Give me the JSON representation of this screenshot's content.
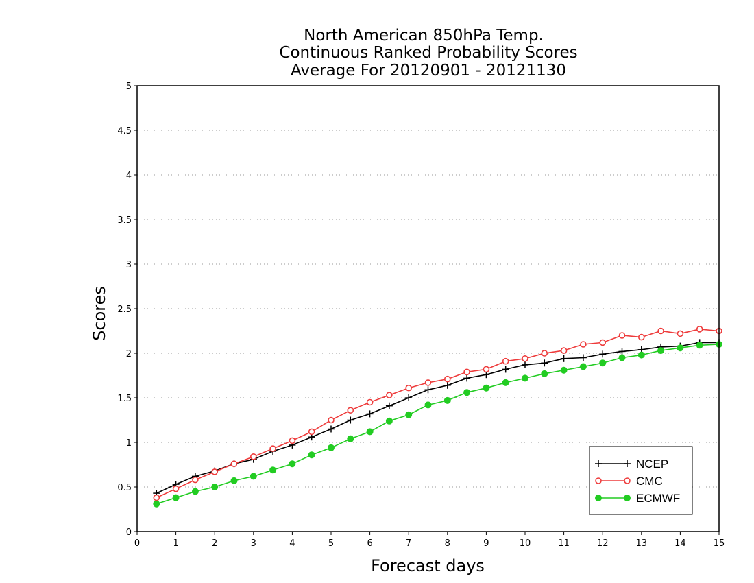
{
  "chart_data": {
    "type": "line",
    "title": [
      "North American 850hPa Temp.",
      "Continuous Ranked Probability Scores",
      "Average For 20120901 - 20121130"
    ],
    "xlabel": "Forecast days",
    "ylabel": "Scores",
    "xlim": [
      0,
      15
    ],
    "ylim": [
      0,
      5
    ],
    "xticks": [
      "0",
      "1",
      "2",
      "3",
      "4",
      "5",
      "6",
      "7",
      "8",
      "9",
      "10",
      "11",
      "12",
      "13",
      "14",
      "15"
    ],
    "yticks": [
      "0",
      "0.5",
      "1",
      "1.5",
      "2",
      "2.5",
      "3",
      "3.5",
      "4",
      "4.5",
      "5"
    ],
    "grid": "horizontal dotted",
    "legend_position": "bottom-right",
    "x": [
      0.5,
      1,
      1.5,
      2,
      2.5,
      3,
      3.5,
      4,
      4.5,
      5,
      5.5,
      6,
      6.5,
      7,
      7.5,
      8,
      8.5,
      9,
      9.5,
      10,
      10.5,
      11,
      11.5,
      12,
      12.5,
      13,
      13.5,
      14,
      14.5,
      15
    ],
    "series": [
      {
        "name": "NCEP",
        "color": "#000000",
        "marker": "plus",
        "values": [
          0.43,
          0.53,
          0.62,
          0.68,
          0.76,
          0.81,
          0.9,
          0.97,
          1.06,
          1.15,
          1.25,
          1.32,
          1.41,
          1.5,
          1.59,
          1.64,
          1.72,
          1.76,
          1.82,
          1.87,
          1.89,
          1.94,
          1.95,
          1.99,
          2.02,
          2.04,
          2.07,
          2.08,
          2.12,
          2.12
        ]
      },
      {
        "name": "CMC",
        "color": "#ee3b3b",
        "marker": "open-circle",
        "values": [
          0.38,
          0.48,
          0.58,
          0.67,
          0.76,
          0.84,
          0.93,
          1.02,
          1.12,
          1.25,
          1.36,
          1.45,
          1.53,
          1.61,
          1.67,
          1.71,
          1.79,
          1.82,
          1.91,
          1.94,
          2.0,
          2.03,
          2.1,
          2.12,
          2.2,
          2.18,
          2.25,
          2.22,
          2.27,
          2.25
        ]
      },
      {
        "name": "ECMWF",
        "color": "#22cc22",
        "marker": "filled-circle",
        "values": [
          0.31,
          0.38,
          0.45,
          0.5,
          0.57,
          0.62,
          0.69,
          0.76,
          0.86,
          0.94,
          1.04,
          1.12,
          1.24,
          1.31,
          1.42,
          1.47,
          1.56,
          1.61,
          1.67,
          1.72,
          1.77,
          1.81,
          1.85,
          1.89,
          1.95,
          1.98,
          2.03,
          2.06,
          2.09,
          2.1
        ]
      }
    ]
  }
}
